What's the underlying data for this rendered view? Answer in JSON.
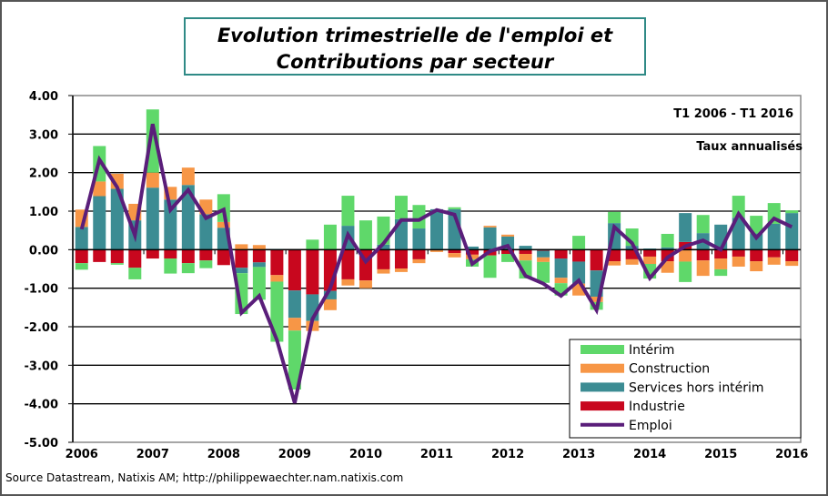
{
  "title_line1": "Evolution trimestrielle de l'emploi et",
  "title_line2": "Contributions par secteur",
  "period_note": "T1 2006 - T1 2016",
  "rate_note": "Taux annualisés",
  "source": "Source Datastream, Natixis AM; http://philippewaechter.nam.natixis.com",
  "chart_data": {
    "type": "bar",
    "stacked": true,
    "x_tick_labels": [
      "2006",
      "2007",
      "2008",
      "2009",
      "2010",
      "2011",
      "2012",
      "2013",
      "2014",
      "2015",
      "2016"
    ],
    "quarters": [
      "T1 2006",
      "T2 2006",
      "T3 2006",
      "T4 2006",
      "T1 2007",
      "T2 2007",
      "T3 2007",
      "T4 2007",
      "T1 2008",
      "T2 2008",
      "T3 2008",
      "T4 2008",
      "T1 2009",
      "T2 2009",
      "T3 2009",
      "T4 2009",
      "T1 2010",
      "T2 2010",
      "T3 2010",
      "T4 2010",
      "T1 2011",
      "T2 2011",
      "T3 2011",
      "T4 2011",
      "T1 2012",
      "T2 2012",
      "T3 2012",
      "T4 2012",
      "T1 2013",
      "T2 2013",
      "T3 2013",
      "T4 2013",
      "T1 2014",
      "T2 2014",
      "T3 2014",
      "T4 2014",
      "T1 2015",
      "T2 2015",
      "T3 2015",
      "T4 2015",
      "T1 2016"
    ],
    "ylim": [
      -5,
      4
    ],
    "y_ticks": [
      "4.00",
      "3.00",
      "2.00",
      "1.00",
      "0.00",
      "-1.00",
      "-2.00",
      "-3.00",
      "-4.00",
      "-5.00"
    ],
    "grid": true,
    "legend_position": "bottom-right",
    "series": [
      {
        "name": "Industrie",
        "color": "#C8071E",
        "values": [
          -0.35,
          -0.32,
          -0.35,
          -0.47,
          -0.23,
          -0.23,
          -0.35,
          -0.28,
          -0.4,
          -0.47,
          -0.33,
          -0.66,
          -1.06,
          -1.16,
          -1.07,
          -0.77,
          -0.8,
          -0.51,
          -0.49,
          -0.25,
          0,
          -0.09,
          -0.13,
          -0.15,
          -0.11,
          -0.11,
          -0.03,
          -0.23,
          -0.31,
          -0.54,
          -0.3,
          -0.25,
          -0.18,
          -0.3,
          0.2,
          -0.28,
          -0.23,
          -0.18,
          -0.3,
          -0.2,
          -0.3
        ]
      },
      {
        "name": "Services hors intérim",
        "color": "#3C8C93",
        "values": [
          0.59,
          1.39,
          1.58,
          0.76,
          1.61,
          1.3,
          1.68,
          0.92,
          0.57,
          -0.14,
          -0.12,
          0.02,
          -0.71,
          -0.69,
          -0.22,
          0.62,
          0,
          0.13,
          0.79,
          0.55,
          1.05,
          1.05,
          0.08,
          0.58,
          0.34,
          0.1,
          -0.17,
          -0.5,
          -0.57,
          -0.68,
          0.69,
          0.1,
          0.03,
          0.06,
          0.75,
          0.43,
          0.65,
          0.83,
          0.42,
          0.67,
          0.95
        ]
      },
      {
        "name": "Construction",
        "color": "#F79646",
        "values": [
          0.45,
          0.38,
          0.39,
          0.43,
          0.39,
          0.33,
          0.45,
          0.38,
          0.15,
          0.14,
          0.12,
          -0.17,
          -0.33,
          -0.26,
          -0.28,
          -0.16,
          -0.2,
          -0.11,
          -0.09,
          -0.1,
          -0.06,
          -0.11,
          -0.12,
          0.04,
          0.05,
          -0.17,
          -0.12,
          -0.14,
          -0.31,
          -0.14,
          -0.11,
          -0.14,
          -0.19,
          -0.3,
          -0.31,
          -0.4,
          -0.28,
          -0.26,
          -0.26,
          -0.19,
          -0.12
        ]
      },
      {
        "name": "Intérim",
        "color": "#5FD86A",
        "values": [
          -0.17,
          0.92,
          -0.04,
          -0.3,
          1.64,
          -0.39,
          -0.26,
          -0.2,
          0.72,
          -1.06,
          -0.85,
          -1.56,
          -1.53,
          0.26,
          0.65,
          0.78,
          0.76,
          0.73,
          0.61,
          0.61,
          0,
          0.05,
          -0.19,
          -0.58,
          -0.21,
          -0.47,
          -0.54,
          -0.32,
          0.36,
          -0.2,
          0.29,
          0.45,
          -0.38,
          0.35,
          -0.53,
          0.47,
          -0.17,
          0.57,
          0.46,
          0.54,
          0.07
        ]
      },
      {
        "name": "Emploi",
        "color": "#5A1E7A",
        "type": "line",
        "values": [
          0.53,
          2.34,
          1.62,
          0.37,
          3.26,
          1.03,
          1.55,
          0.82,
          1.04,
          -1.64,
          -1.2,
          -2.35,
          -3.98,
          -1.8,
          -1.0,
          0.39,
          -0.31,
          0.16,
          0.77,
          0.77,
          1.03,
          0.91,
          -0.37,
          -0.04,
          0.1,
          -0.68,
          -0.88,
          -1.2,
          -0.8,
          -1.57,
          0.59,
          0.17,
          -0.74,
          -0.2,
          0.09,
          0.24,
          0,
          0.93,
          0.31,
          0.81,
          0.59
        ]
      }
    ],
    "legend_order": [
      "Intérim",
      "Construction",
      "Services hors intérim",
      "Industrie",
      "Emploi"
    ]
  }
}
